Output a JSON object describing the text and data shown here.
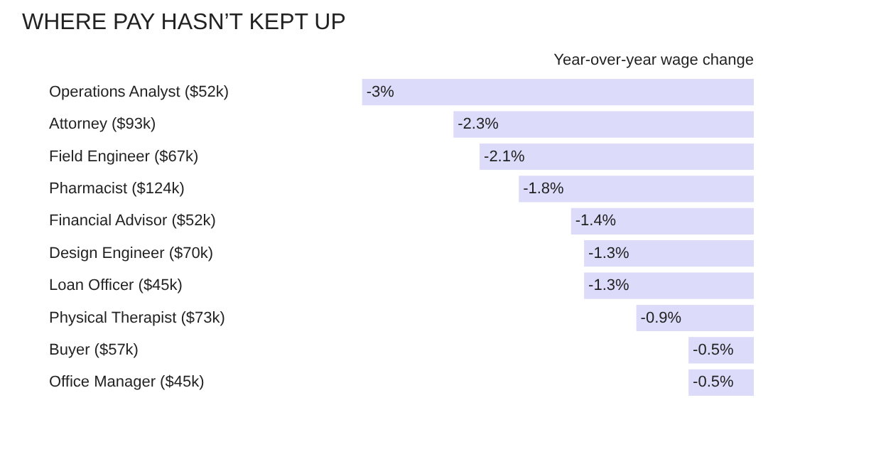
{
  "chart_data": {
    "type": "bar",
    "orientation": "horizontal",
    "title": "WHERE PAY HASN’T KEPT UP",
    "xlabel": "Year-over-year wage change",
    "categories": [
      "Operations Analyst ($52k)",
      "Attorney ($93k)",
      "Field Engineer ($67k)",
      "Pharmacist ($124k)",
      "Financial Advisor ($52k)",
      "Design Engineer ($70k)",
      "Loan Officer ($45k)",
      "Physical Therapist ($73k)",
      "Buyer ($57k)",
      "Office Manager ($45k)"
    ],
    "values": [
      -3,
      -2.3,
      -2.1,
      -1.8,
      -1.4,
      -1.3,
      -1.3,
      -0.9,
      -0.5,
      -0.5
    ],
    "value_labels": [
      "-3%",
      "-2.3%",
      "-2.1%",
      "-1.8%",
      "-1.4%",
      "-1.3%",
      "-1.3%",
      "-0.9%",
      "-0.5%",
      "-0.5%"
    ],
    "color": "#dcdcfa",
    "grid": false
  }
}
